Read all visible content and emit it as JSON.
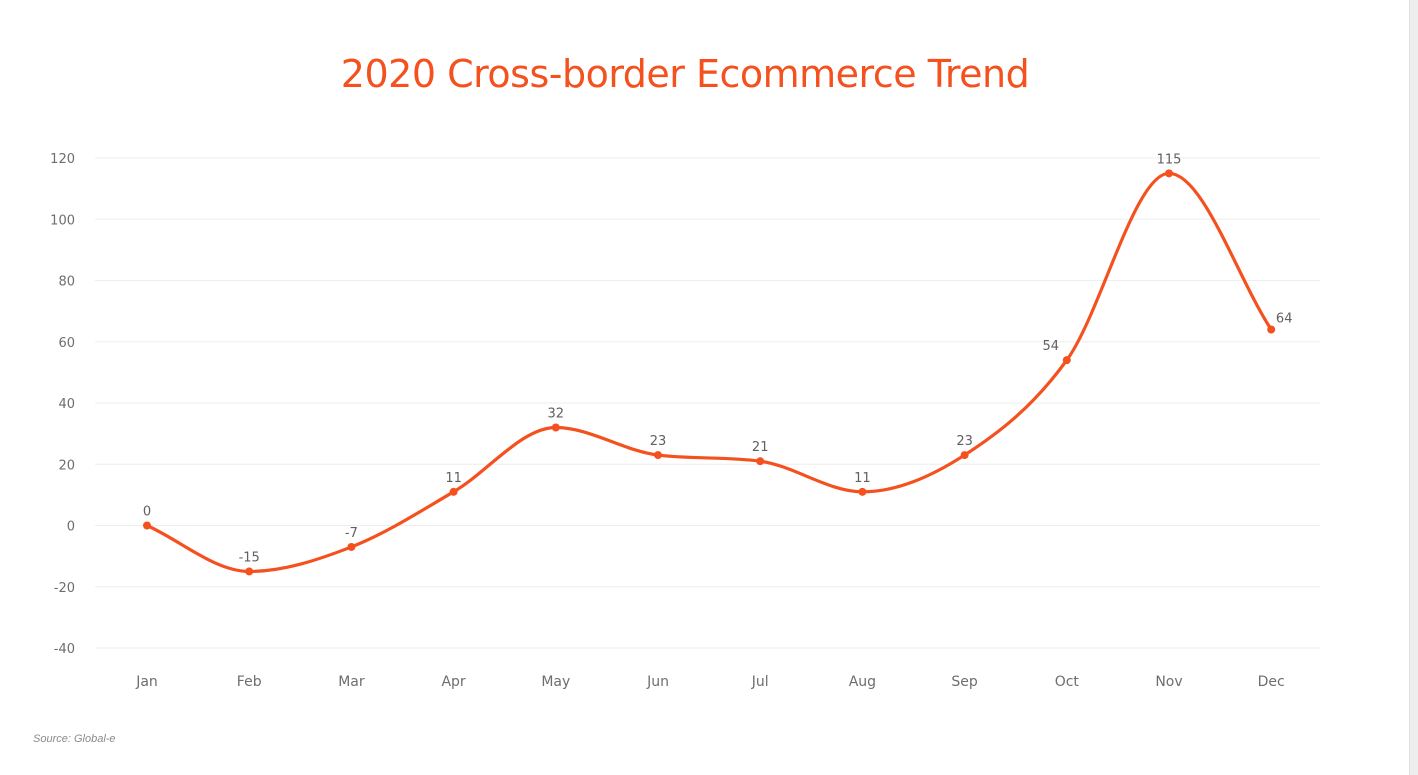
{
  "title": "2020 Cross-border Ecommerce Trend",
  "source": "Source: Global-e",
  "colors": {
    "accent": "#f4511e",
    "grid": "#eeeeee",
    "text": "#6e6e6e"
  },
  "chart_data": {
    "type": "line",
    "title": "2020 Cross-border Ecommerce Trend",
    "xlabel": "",
    "ylabel": "",
    "ylim": [
      -40,
      120
    ],
    "yticks": [
      -40,
      -20,
      0,
      20,
      40,
      60,
      80,
      100,
      120
    ],
    "grid": true,
    "smooth": true,
    "categories": [
      "Jan",
      "Feb",
      "Mar",
      "Apr",
      "May",
      "Jun",
      "Jul",
      "Aug",
      "Sep",
      "Oct",
      "Nov",
      "Dec"
    ],
    "series": [
      {
        "values": [
          0,
          -15,
          -7,
          11,
          32,
          23,
          21,
          11,
          23,
          54,
          115,
          64
        ],
        "labels": [
          "0",
          "-15",
          "-7",
          "11",
          "32",
          "23",
          "21",
          "11",
          "23",
          "54",
          "115",
          "64"
        ]
      }
    ]
  }
}
